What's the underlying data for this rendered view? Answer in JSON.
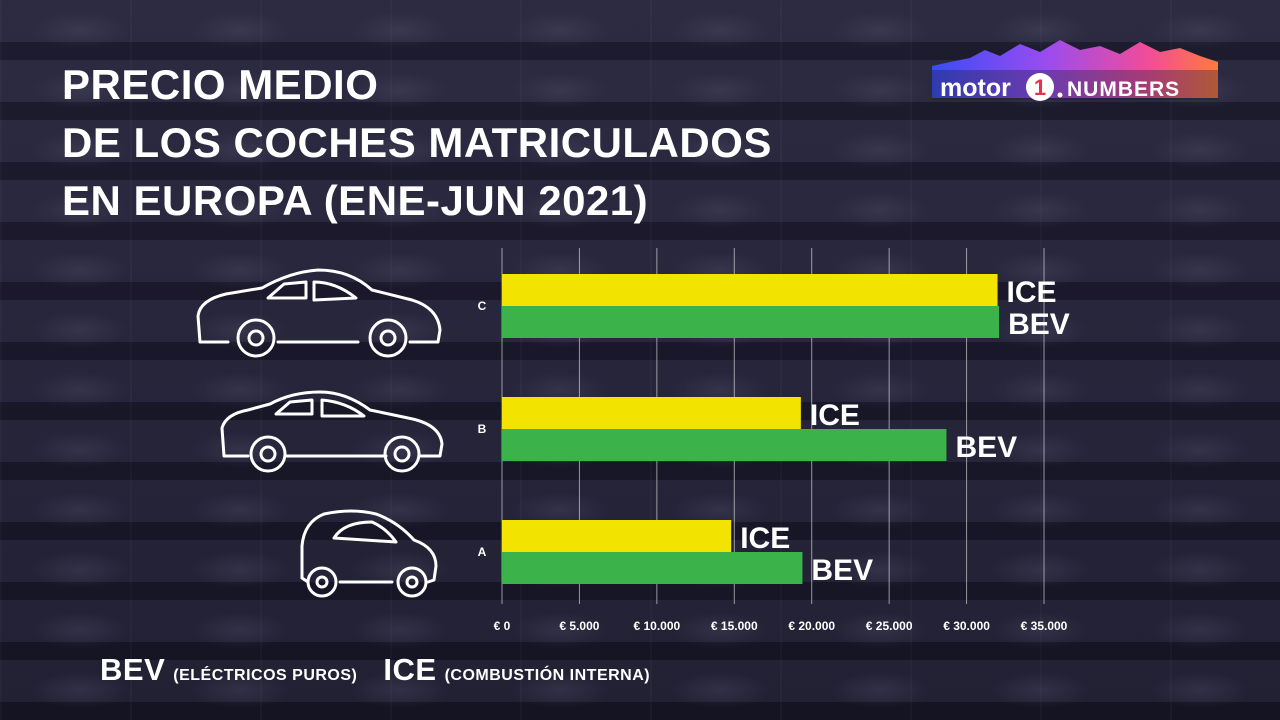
{
  "title_lines": [
    "PRECIO MEDIO",
    "DE LOS COCHES MATRICULADOS",
    "EN EUROPA (ENE-JUN 2021)"
  ],
  "logo": {
    "text_main": "motor",
    "text_numeral": "1",
    "text_suffix": "NUMBERS",
    "colors": [
      "#3a4cf5",
      "#9a4cf0",
      "#f04c9a",
      "#ff7a3c"
    ]
  },
  "icons": [
    "sedan-car-icon",
    "medium-sedan-car-icon",
    "small-city-car-icon"
  ],
  "chart_data": {
    "type": "bar",
    "orientation": "horizontal",
    "categories": [
      "C",
      "B",
      "A"
    ],
    "series": [
      {
        "name": "ICE",
        "color": "#f2e300",
        "values": [
          32000,
          19300,
          14800
        ]
      },
      {
        "name": "BEV",
        "color": "#3cb34a",
        "values": [
          32100,
          28700,
          19400
        ]
      }
    ],
    "xlim": [
      0,
      35000
    ],
    "x_ticks": [
      0,
      5000,
      10000,
      15000,
      20000,
      25000,
      30000,
      35000
    ],
    "x_tick_labels": [
      "€ 0",
      "€ 5.000",
      "€ 10.000",
      "€ 15.000",
      "€ 20.000",
      "€ 25.000",
      "€ 30.000",
      "€ 35.000"
    ],
    "grid": "vertical",
    "bar_labels": "series name at bar end"
  },
  "legend": {
    "bev_abbr": "BEV",
    "bev_desc": "(ELÉCTRICOS PUROS)",
    "ice_abbr": "ICE",
    "ice_desc": "(COMBUSTIÓN INTERNA)"
  }
}
